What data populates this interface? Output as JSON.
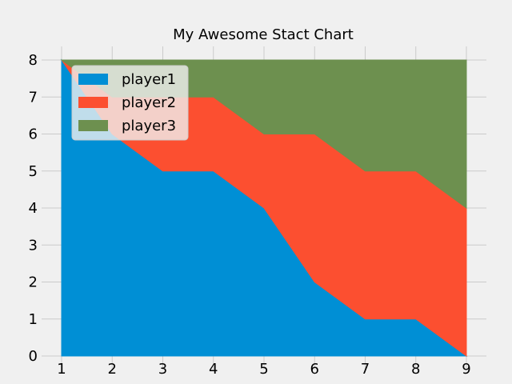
{
  "chart_data": {
    "type": "area",
    "stacked": true,
    "title": "My Awesome Stact Chart",
    "xlabel": "",
    "ylabel": "",
    "x": [
      1,
      2,
      3,
      4,
      5,
      6,
      7,
      8,
      9
    ],
    "xlim": [
      1,
      9
    ],
    "ylim": [
      0,
      8
    ],
    "xticks": [
      1,
      2,
      3,
      4,
      5,
      6,
      7,
      8,
      9
    ],
    "yticks": [
      0,
      1,
      2,
      3,
      4,
      5,
      6,
      7,
      8
    ],
    "grid": true,
    "legend_position": "top-left",
    "series": [
      {
        "name": "player1",
        "color": "#008fd5",
        "values": [
          8,
          6,
          5,
          5,
          4,
          2,
          1,
          1,
          0
        ]
      },
      {
        "name": "player2",
        "color": "#fc4f30",
        "values": [
          0,
          1,
          2,
          2,
          2,
          4,
          4,
          4,
          4
        ]
      },
      {
        "name": "player3",
        "color": "#6d904f",
        "values": [
          0,
          1,
          1,
          1,
          2,
          2,
          3,
          3,
          4
        ]
      }
    ]
  }
}
